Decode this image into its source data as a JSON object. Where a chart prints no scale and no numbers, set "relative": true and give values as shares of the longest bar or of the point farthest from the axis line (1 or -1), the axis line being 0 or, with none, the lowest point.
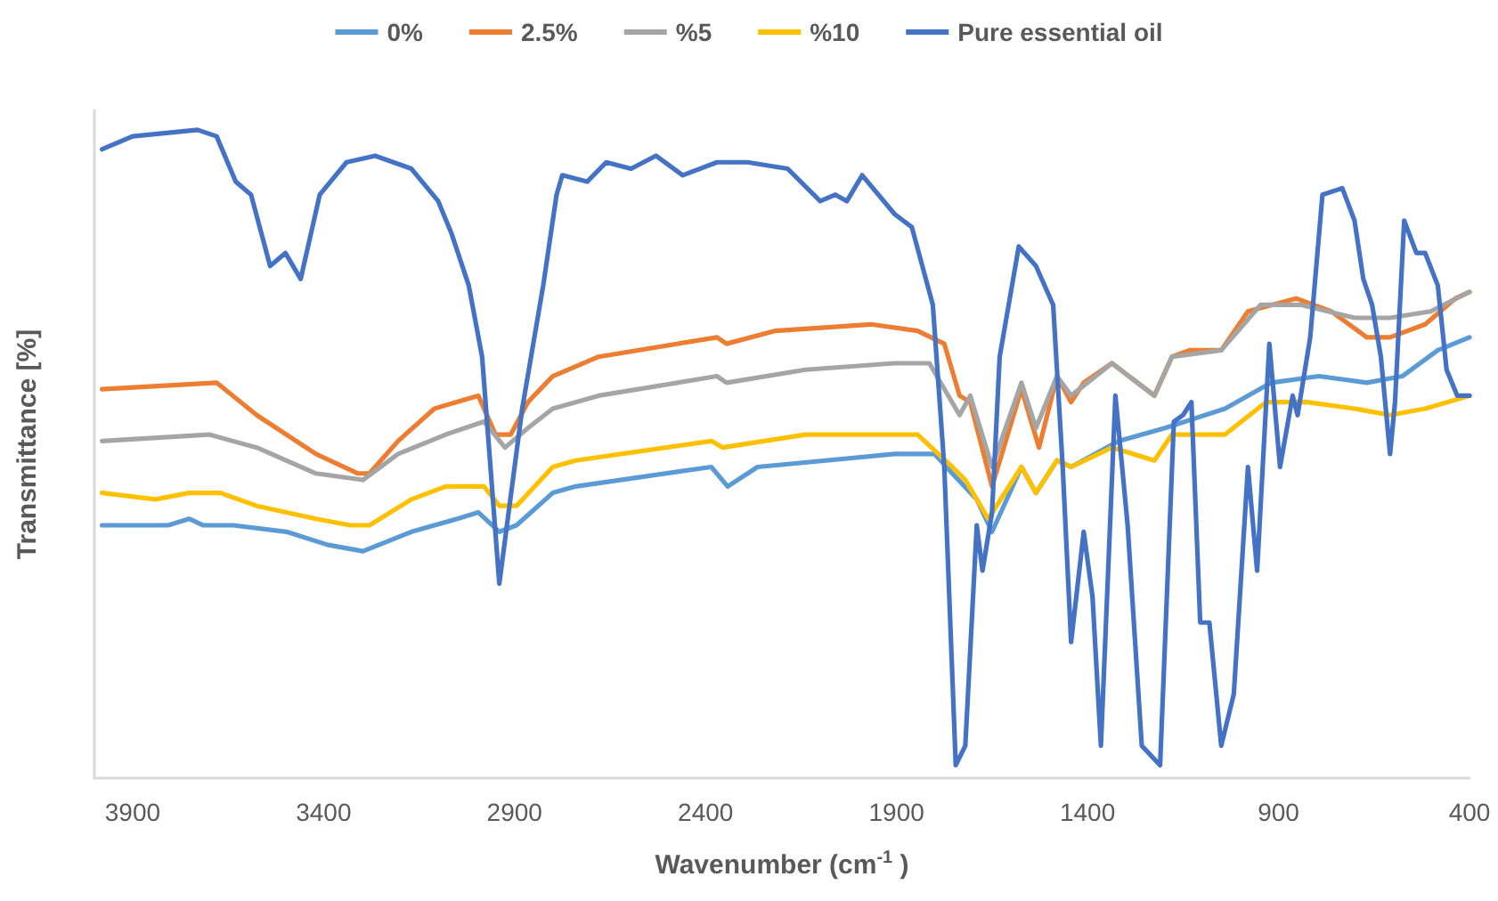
{
  "chart_data": {
    "type": "line",
    "xlabel": "Wavenumber (cm$^{-1}$ )",
    "ylabel": "Transmittance [%]",
    "relative": true,
    "xlim": [
      4000,
      400
    ],
    "xticks": [
      3900,
      3400,
      2900,
      2400,
      1900,
      1400,
      900,
      400
    ],
    "legend": "top",
    "marker": "none",
    "line_style": "solid",
    "grid": false,
    "series": [
      {
        "name": "0%",
        "color": "#5b9bd5",
        "x": [
          3980,
          3807,
          3752,
          3715,
          3636,
          3497,
          3390,
          3297,
          3170,
          3050,
          2995,
          2940,
          2895,
          2800,
          2740,
          2385,
          2342,
          2264,
          1905,
          1800,
          1754,
          1690,
          1650,
          1573,
          1535,
          1480,
          1443,
          1318,
          1197,
          1040,
          919,
          794,
          669,
          576,
          483,
          400
        ],
        "values": [
          0.39,
          0.39,
          0.4,
          0.39,
          0.39,
          0.38,
          0.36,
          0.35,
          0.38,
          0.4,
          0.41,
          0.38,
          0.39,
          0.44,
          0.45,
          0.48,
          0.45,
          0.48,
          0.5,
          0.5,
          0.47,
          0.43,
          0.38,
          0.48,
          0.44,
          0.49,
          0.48,
          0.52,
          0.54,
          0.57,
          0.61,
          0.62,
          0.61,
          0.62,
          0.66,
          0.68
        ]
      },
      {
        "name": "2.5%",
        "color": "#ed7d31",
        "x": [
          3980,
          3680,
          3575,
          3420,
          3310,
          3280,
          3205,
          3110,
          2995,
          2950,
          2910,
          2865,
          2800,
          2680,
          2370,
          2345,
          2217,
          1967,
          1845,
          1775,
          1735,
          1707,
          1650,
          1573,
          1527,
          1480,
          1443,
          1410,
          1336,
          1225,
          1179,
          1133,
          1050,
          980,
          854,
          762,
          669,
          608,
          516,
          437,
          400
        ],
        "values": [
          0.6,
          0.61,
          0.56,
          0.5,
          0.47,
          0.47,
          0.52,
          0.57,
          0.59,
          0.53,
          0.53,
          0.58,
          0.62,
          0.65,
          0.68,
          0.67,
          0.69,
          0.7,
          0.69,
          0.67,
          0.59,
          0.58,
          0.45,
          0.6,
          0.51,
          0.62,
          0.58,
          0.61,
          0.64,
          0.59,
          0.65,
          0.66,
          0.66,
          0.72,
          0.74,
          0.72,
          0.68,
          0.68,
          0.7,
          0.74,
          0.75
        ]
      },
      {
        "name": "%5",
        "color": "#a5a5a5",
        "x": [
          3980,
          3700,
          3575,
          3420,
          3297,
          3205,
          3080,
          2980,
          2925,
          2865,
          2800,
          2680,
          2370,
          2345,
          2138,
          1905,
          1814,
          1735,
          1707,
          1650,
          1573,
          1535,
          1480,
          1443,
          1336,
          1225,
          1179,
          1050,
          947,
          840,
          701,
          608,
          502,
          400
        ],
        "values": [
          0.52,
          0.53,
          0.51,
          0.47,
          0.46,
          0.5,
          0.53,
          0.55,
          0.51,
          0.54,
          0.57,
          0.59,
          0.62,
          0.61,
          0.63,
          0.64,
          0.64,
          0.56,
          0.59,
          0.48,
          0.61,
          0.54,
          0.62,
          0.59,
          0.64,
          0.59,
          0.65,
          0.66,
          0.73,
          0.73,
          0.71,
          0.71,
          0.72,
          0.75
        ]
      },
      {
        "name": "%10",
        "color": "#ffc000",
        "x": [
          3980,
          3840,
          3752,
          3725,
          3670,
          3575,
          3420,
          3330,
          3280,
          3170,
          3080,
          2980,
          2940,
          2895,
          2800,
          2740,
          2385,
          2355,
          2138,
          1845,
          1754,
          1720,
          1660,
          1573,
          1535,
          1480,
          1443,
          1336,
          1225,
          1179,
          1040,
          933,
          826,
          701,
          608,
          516,
          400
        ],
        "values": [
          0.44,
          0.43,
          0.44,
          0.44,
          0.44,
          0.42,
          0.4,
          0.39,
          0.39,
          0.43,
          0.45,
          0.45,
          0.42,
          0.42,
          0.48,
          0.49,
          0.52,
          0.51,
          0.53,
          0.53,
          0.48,
          0.46,
          0.4,
          0.48,
          0.44,
          0.49,
          0.48,
          0.51,
          0.49,
          0.53,
          0.53,
          0.58,
          0.58,
          0.57,
          0.56,
          0.57,
          0.59
        ]
      },
      {
        "name": "Pure essential oil",
        "color": "#4472c4",
        "x": [
          3980,
          3900,
          3730,
          3680,
          3630,
          3590,
          3540,
          3500,
          3460,
          3410,
          3340,
          3265,
          3170,
          3100,
          3065,
          3020,
          2985,
          2940,
          2880,
          2825,
          2790,
          2775,
          2710,
          2660,
          2595,
          2530,
          2460,
          2370,
          2290,
          2185,
          2100,
          2060,
          2030,
          1990,
          1905,
          1860,
          1805,
          1775,
          1745,
          1720,
          1690,
          1675,
          1650,
          1630,
          1580,
          1535,
          1490,
          1465,
          1443,
          1410,
          1387,
          1365,
          1327,
          1295,
          1258,
          1210,
          1174,
          1150,
          1128,
          1105,
          1081,
          1050,
          1017,
          980,
          956,
          924,
          896,
          863,
          850,
          817,
          785,
          733,
          701,
          678,
          655,
          632,
          608,
          595,
          571,
          539,
          516,
          483,
          460,
          432,
          400
        ],
        "values": [
          0.97,
          0.99,
          1.0,
          0.99,
          0.92,
          0.9,
          0.79,
          0.81,
          0.77,
          0.9,
          0.95,
          0.96,
          0.94,
          0.89,
          0.84,
          0.76,
          0.65,
          0.3,
          0.57,
          0.76,
          0.9,
          0.93,
          0.92,
          0.95,
          0.94,
          0.96,
          0.93,
          0.95,
          0.95,
          0.94,
          0.89,
          0.9,
          0.89,
          0.93,
          0.87,
          0.85,
          0.73,
          0.48,
          0.02,
          0.05,
          0.39,
          0.32,
          0.41,
          0.65,
          0.82,
          0.79,
          0.73,
          0.48,
          0.21,
          0.38,
          0.28,
          0.05,
          0.59,
          0.39,
          0.05,
          0.02,
          0.55,
          0.56,
          0.58,
          0.24,
          0.24,
          0.05,
          0.13,
          0.48,
          0.32,
          0.67,
          0.48,
          0.59,
          0.56,
          0.68,
          0.9,
          0.91,
          0.86,
          0.77,
          0.73,
          0.65,
          0.5,
          0.58,
          0.86,
          0.81,
          0.81,
          0.76,
          0.63,
          0.59,
          0.59
        ]
      }
    ]
  }
}
